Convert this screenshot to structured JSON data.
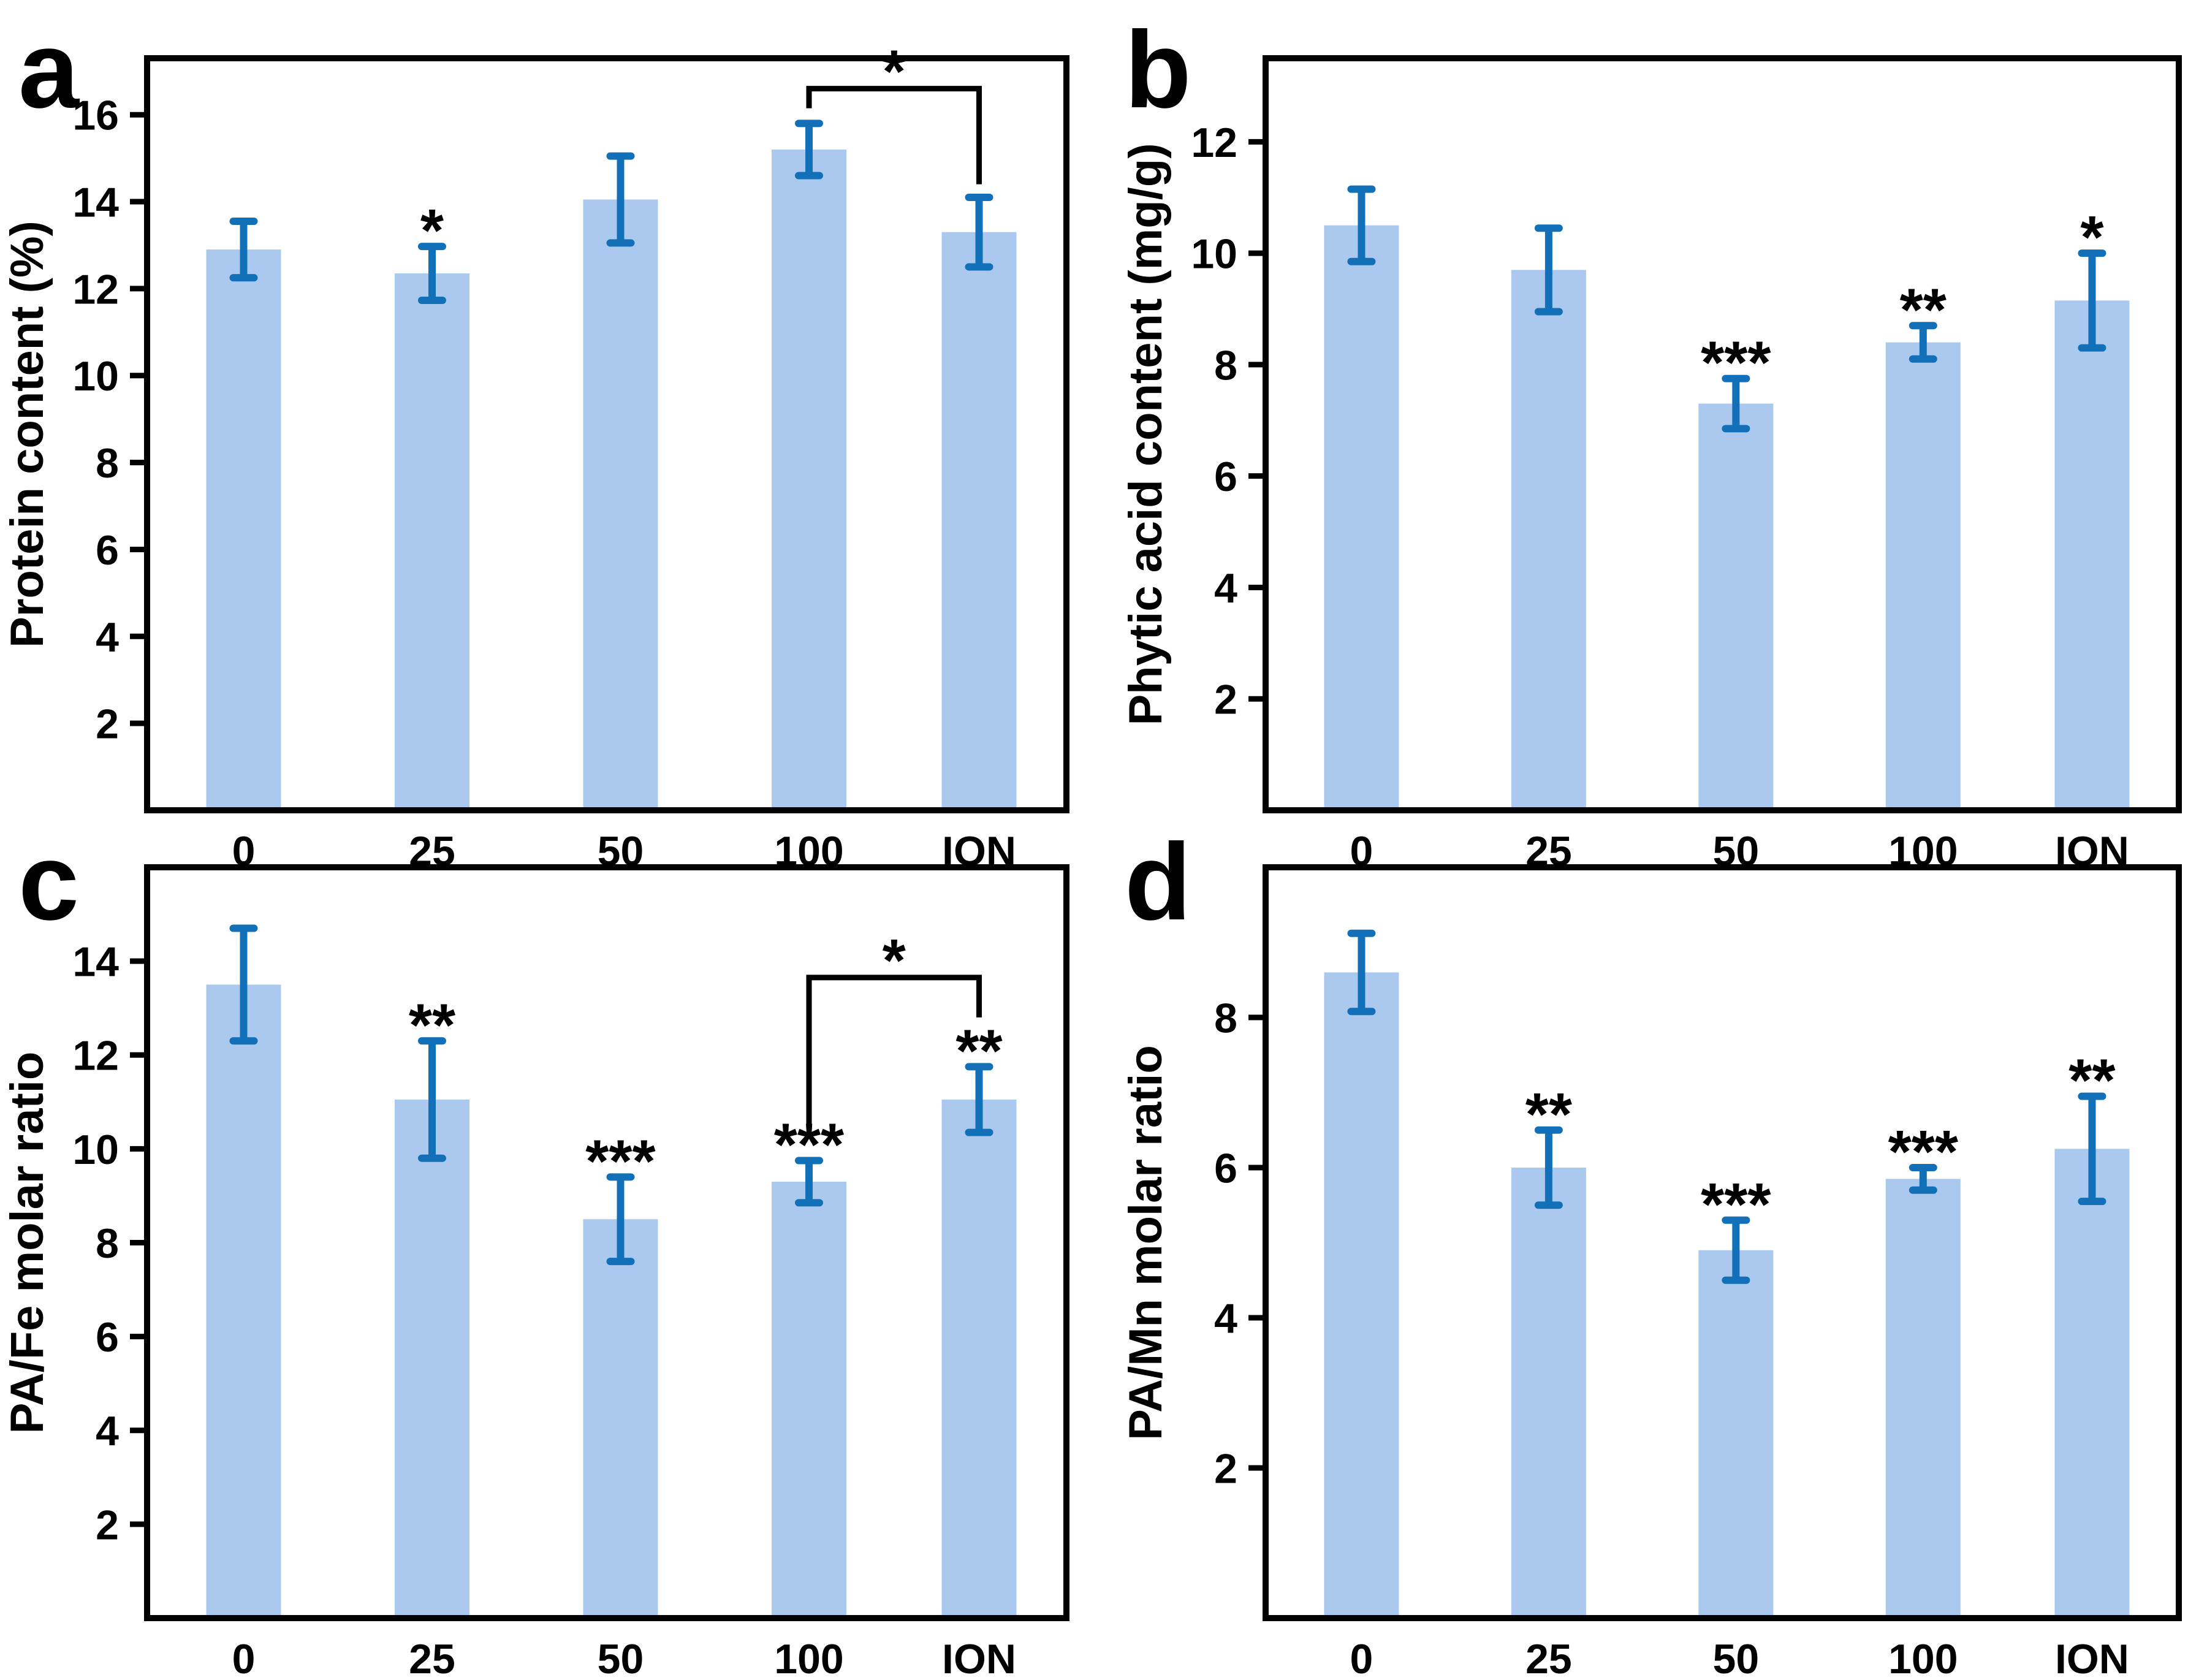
{
  "figure": {
    "background": "#ffffff",
    "bar_fill": "#abc9ee",
    "error_bar_color": "#1270b8",
    "axis_color": "#000000",
    "text_color": "#000000"
  },
  "chart_data": [
    {
      "type": "bar",
      "panel_letter": "a",
      "ylabel": "Protein content (%)",
      "xlabel": "",
      "categories": [
        "0",
        "25",
        "50",
        "100",
        "ION"
      ],
      "values": [
        12.9,
        12.35,
        14.05,
        15.2,
        13.3
      ],
      "errors": [
        0.65,
        0.62,
        1.0,
        0.6,
        0.8
      ],
      "significance": [
        "",
        "*",
        "",
        "",
        ""
      ],
      "yticks": [
        2,
        4,
        6,
        8,
        10,
        12,
        14,
        16
      ],
      "ylim": [
        0,
        17.3
      ],
      "grid": false,
      "bracket": {
        "between": [
          "100",
          "ION"
        ],
        "label": "*",
        "line_y": 16.6,
        "arm_left_y": 16.15,
        "arm_right_y": 14.4
      }
    },
    {
      "type": "bar",
      "panel_letter": "b",
      "ylabel": "Phytic acid content (mg/g)",
      "xlabel": "",
      "categories": [
        "0",
        "25",
        "50",
        "100",
        "ION"
      ],
      "values": [
        10.5,
        9.7,
        7.3,
        8.4,
        9.15
      ],
      "errors": [
        0.65,
        0.75,
        0.45,
        0.3,
        0.85
      ],
      "significance": [
        "",
        "",
        "***",
        "**",
        "*"
      ],
      "yticks": [
        2,
        4,
        6,
        8,
        10,
        12
      ],
      "ylim": [
        0,
        13.5
      ],
      "grid": false,
      "bracket": null
    },
    {
      "type": "bar",
      "panel_letter": "c",
      "ylabel": "PA/Fe molar ratio",
      "xlabel": "",
      "categories": [
        "0",
        "25",
        "50",
        "100",
        "ION"
      ],
      "values": [
        13.5,
        11.05,
        8.5,
        9.3,
        11.05
      ],
      "errors": [
        1.2,
        1.25,
        0.9,
        0.45,
        0.7
      ],
      "significance": [
        "",
        "**",
        "***",
        "***",
        "**"
      ],
      "yticks": [
        2,
        4,
        6,
        8,
        10,
        12,
        14
      ],
      "ylim": [
        0,
        16
      ],
      "grid": false,
      "bracket": {
        "between": [
          "100",
          "ION"
        ],
        "label": "*",
        "line_y": 13.65,
        "arm_left_y": 10.5,
        "arm_right_y": 12.8
      }
    },
    {
      "type": "bar",
      "panel_letter": "d",
      "ylabel": "PA/Mn molar ratio",
      "xlabel": "",
      "categories": [
        "0",
        "25",
        "50",
        "100",
        "ION"
      ],
      "values": [
        8.6,
        6.0,
        4.9,
        5.85,
        6.25
      ],
      "errors": [
        0.52,
        0.5,
        0.4,
        0.15,
        0.7
      ],
      "significance": [
        "",
        "**",
        "***",
        "***",
        "**"
      ],
      "yticks": [
        2,
        4,
        6,
        8
      ],
      "ylim": [
        0,
        10
      ],
      "grid": false,
      "bracket": null
    }
  ]
}
